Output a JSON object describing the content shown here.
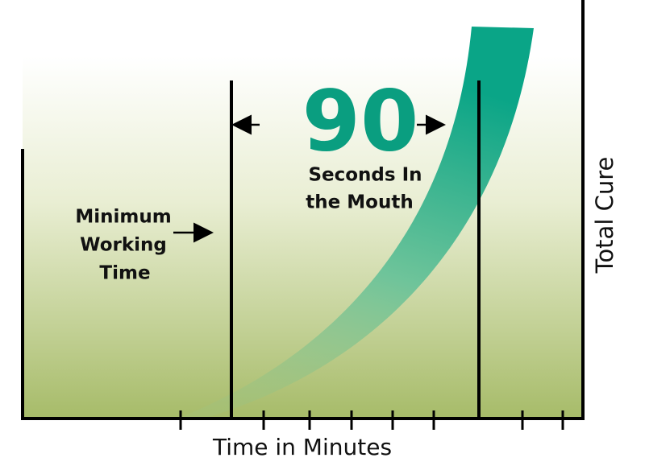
{
  "callout": {
    "number": "90",
    "line1": "Seconds In",
    "line2": "the Mouth"
  },
  "working_time": {
    "line1": "Minimum",
    "line2": "Working",
    "line3": "Time"
  },
  "x_axis_label": "Time in Minutes",
  "y_axis_label": "Total Cure"
}
